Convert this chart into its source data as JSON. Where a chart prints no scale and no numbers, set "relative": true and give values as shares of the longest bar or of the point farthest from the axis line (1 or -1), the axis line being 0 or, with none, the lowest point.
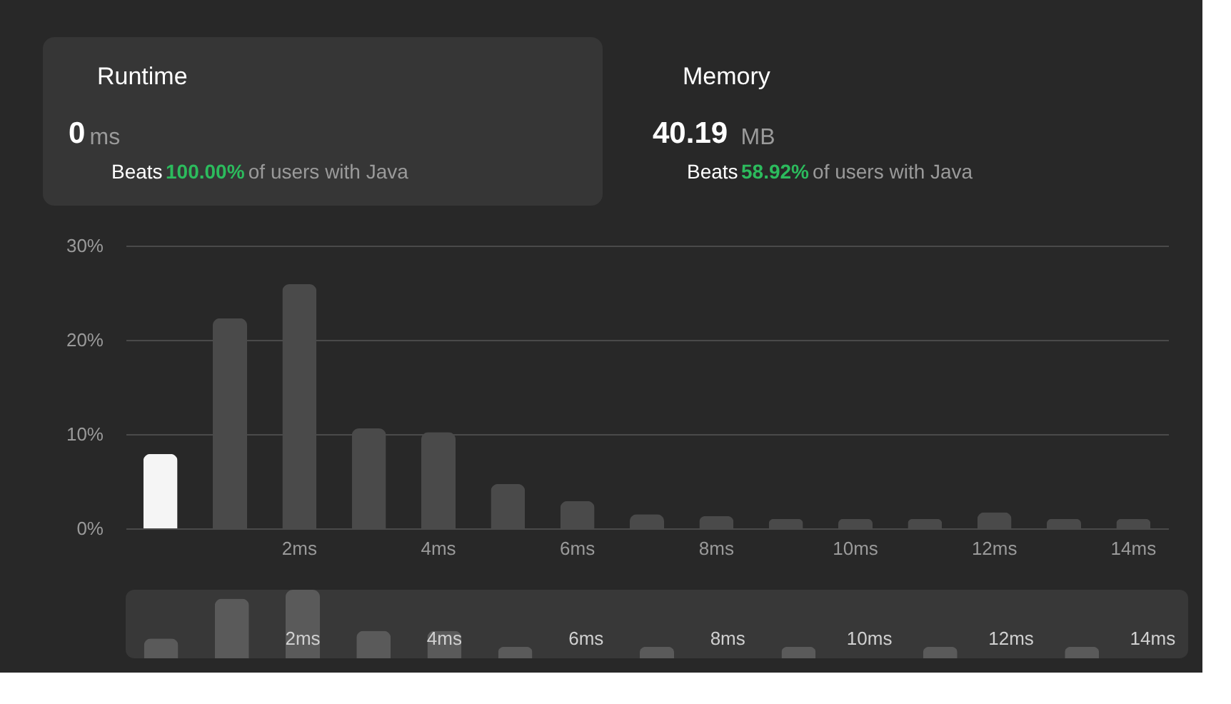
{
  "chart_data": [
    {
      "type": "other",
      "annotations": [
        "Runtime",
        "0",
        "ms",
        "Beats",
        "100.00%",
        "of users with Java",
        "Memory",
        "40.19",
        "MB",
        "Beats",
        "58.92%",
        "of users with Java"
      ]
    },
    {
      "type": "bar",
      "categories": [
        null,
        null,
        "2ms",
        null,
        "4ms",
        null,
        "6ms",
        null,
        "8ms",
        null,
        "10ms",
        null,
        "12ms",
        null,
        "14ms"
      ],
      "values": [
        7.9,
        22.3,
        25.9,
        10.6,
        10.2,
        4.7,
        2.9,
        1.5,
        1.3,
        1.0,
        1.0,
        1.0,
        1.7,
        1.0,
        1.0
      ],
      "colors": [
        "#f5f5f5",
        "#4a4a4a",
        "#4a4a4a",
        "#4a4a4a",
        "#4a4a4a",
        "#4a4a4a",
        "#4a4a4a",
        "#4a4a4a",
        "#4a4a4a",
        "#4a4a4a",
        "#4a4a4a",
        "#4a4a4a",
        "#4a4a4a",
        "#4a4a4a",
        "#4a4a4a"
      ],
      "ylim": [
        0,
        30
      ],
      "yticks": [
        {
          "value": 0,
          "label": "0%"
        },
        {
          "value": 10,
          "label": "10%"
        },
        {
          "value": 20,
          "label": "20%"
        },
        {
          "value": 30,
          "label": "30%"
        }
      ],
      "grid": "y"
    },
    {
      "type": "bar",
      "relative": true,
      "categories": [
        null,
        null,
        "2ms",
        null,
        "4ms",
        null,
        "6ms",
        null,
        "8ms",
        null,
        "10ms",
        null,
        "12ms",
        null,
        "14ms"
      ],
      "values": [
        0.29,
        0.87,
        1,
        0.4,
        0.4,
        0.17,
        null,
        0.17,
        null,
        0.17,
        null,
        0.17,
        null,
        0.17,
        null
      ],
      "color": "#5a5a5a"
    }
  ]
}
